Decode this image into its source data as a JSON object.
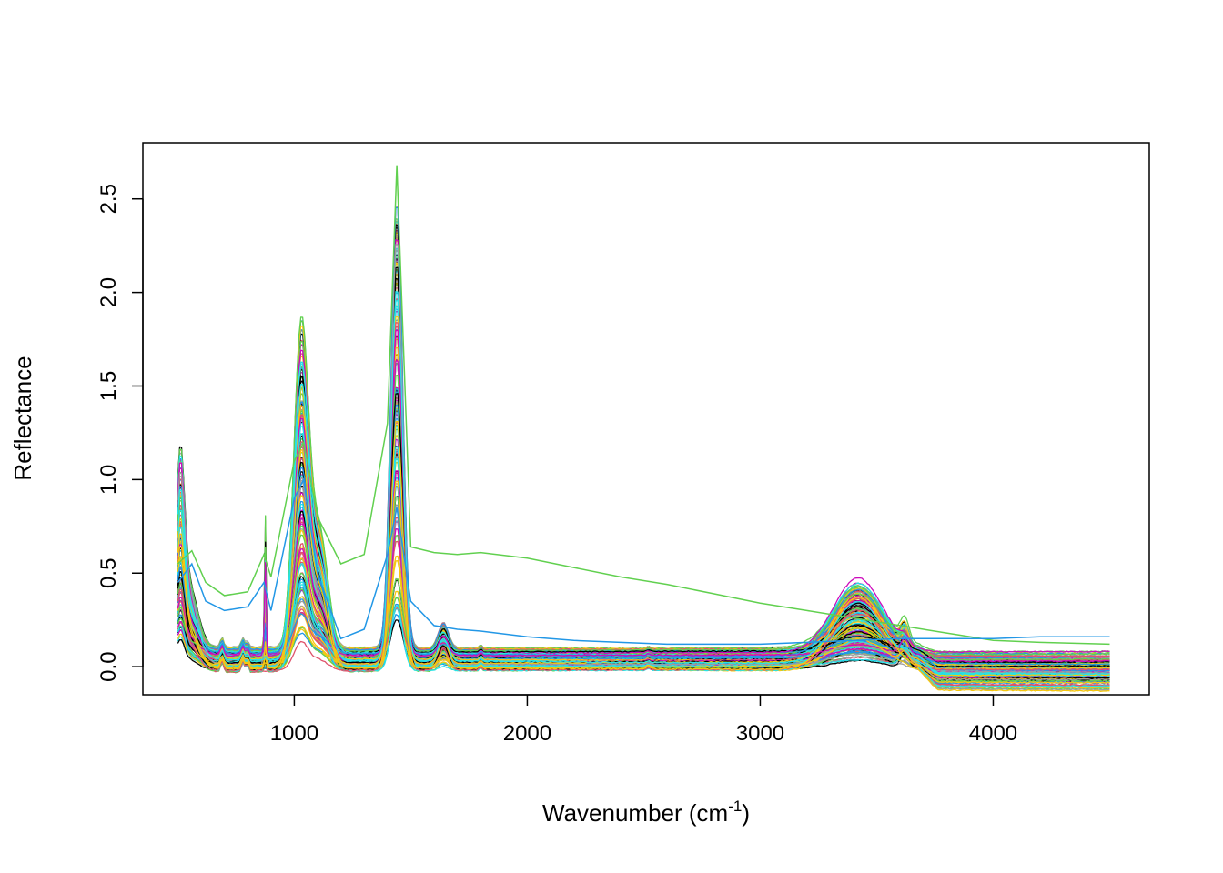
{
  "chart_data": {
    "type": "line",
    "title": "",
    "xlabel": "Wavenumber (cm",
    "xlabel_superscript": "-1",
    "xlabel_suffix": ")",
    "ylabel": "Reflectance",
    "xlim": [
      350,
      4670
    ],
    "ylim": [
      -0.15,
      2.8
    ],
    "x_ticks": [
      1000,
      2000,
      3000,
      4000
    ],
    "x_tick_labels": [
      "1000",
      "2000",
      "3000",
      "4000"
    ],
    "y_ticks": [
      0.0,
      0.5,
      1.0,
      1.5,
      2.0,
      2.5
    ],
    "y_tick_labels": [
      "0.0",
      "0.5",
      "1.0",
      "1.5",
      "2.0",
      "2.5"
    ],
    "grid": false,
    "legend": "none",
    "x_range": [
      500,
      4500
    ],
    "series_count": 160,
    "palette": [
      "#000000",
      "#DF536B",
      "#61D04F",
      "#2297E6",
      "#28E2E5",
      "#CD0BBC",
      "#F5C710",
      "#9E9E9E"
    ],
    "series": [
      {
        "color": "#61D04F",
        "x": [
          500,
          560,
          620,
          700,
          800,
          870,
          900,
          1000,
          1040,
          1100,
          1200,
          1300,
          1400,
          1440,
          1500,
          1600,
          1700,
          1800,
          2000,
          2200,
          2400,
          2600,
          2800,
          3000,
          3200,
          3400,
          3600,
          3800,
          4000,
          4200,
          4500
        ],
        "y": [
          0.55,
          0.62,
          0.45,
          0.38,
          0.4,
          0.6,
          0.48,
          1.1,
          1.2,
          0.8,
          0.55,
          0.6,
          1.3,
          2.68,
          0.64,
          0.61,
          0.6,
          0.61,
          0.58,
          0.53,
          0.48,
          0.44,
          0.39,
          0.34,
          0.3,
          0.26,
          0.22,
          0.18,
          0.14,
          0.13,
          0.12
        ]
      },
      {
        "color": "#2297E6",
        "x": [
          500,
          560,
          620,
          700,
          800,
          870,
          900,
          1000,
          1040,
          1100,
          1200,
          1300,
          1400,
          1440,
          1500,
          1600,
          1700,
          1800,
          2000,
          2200,
          2400,
          2600,
          2800,
          3000,
          3200,
          3400,
          3600,
          3800,
          4000,
          4200,
          4500
        ],
        "y": [
          0.45,
          0.55,
          0.35,
          0.3,
          0.32,
          0.45,
          0.3,
          0.9,
          1.0,
          0.5,
          0.15,
          0.2,
          0.6,
          0.85,
          0.35,
          0.22,
          0.2,
          0.19,
          0.16,
          0.14,
          0.13,
          0.12,
          0.12,
          0.12,
          0.13,
          0.14,
          0.15,
          0.15,
          0.15,
          0.16,
          0.16
        ]
      }
    ]
  }
}
